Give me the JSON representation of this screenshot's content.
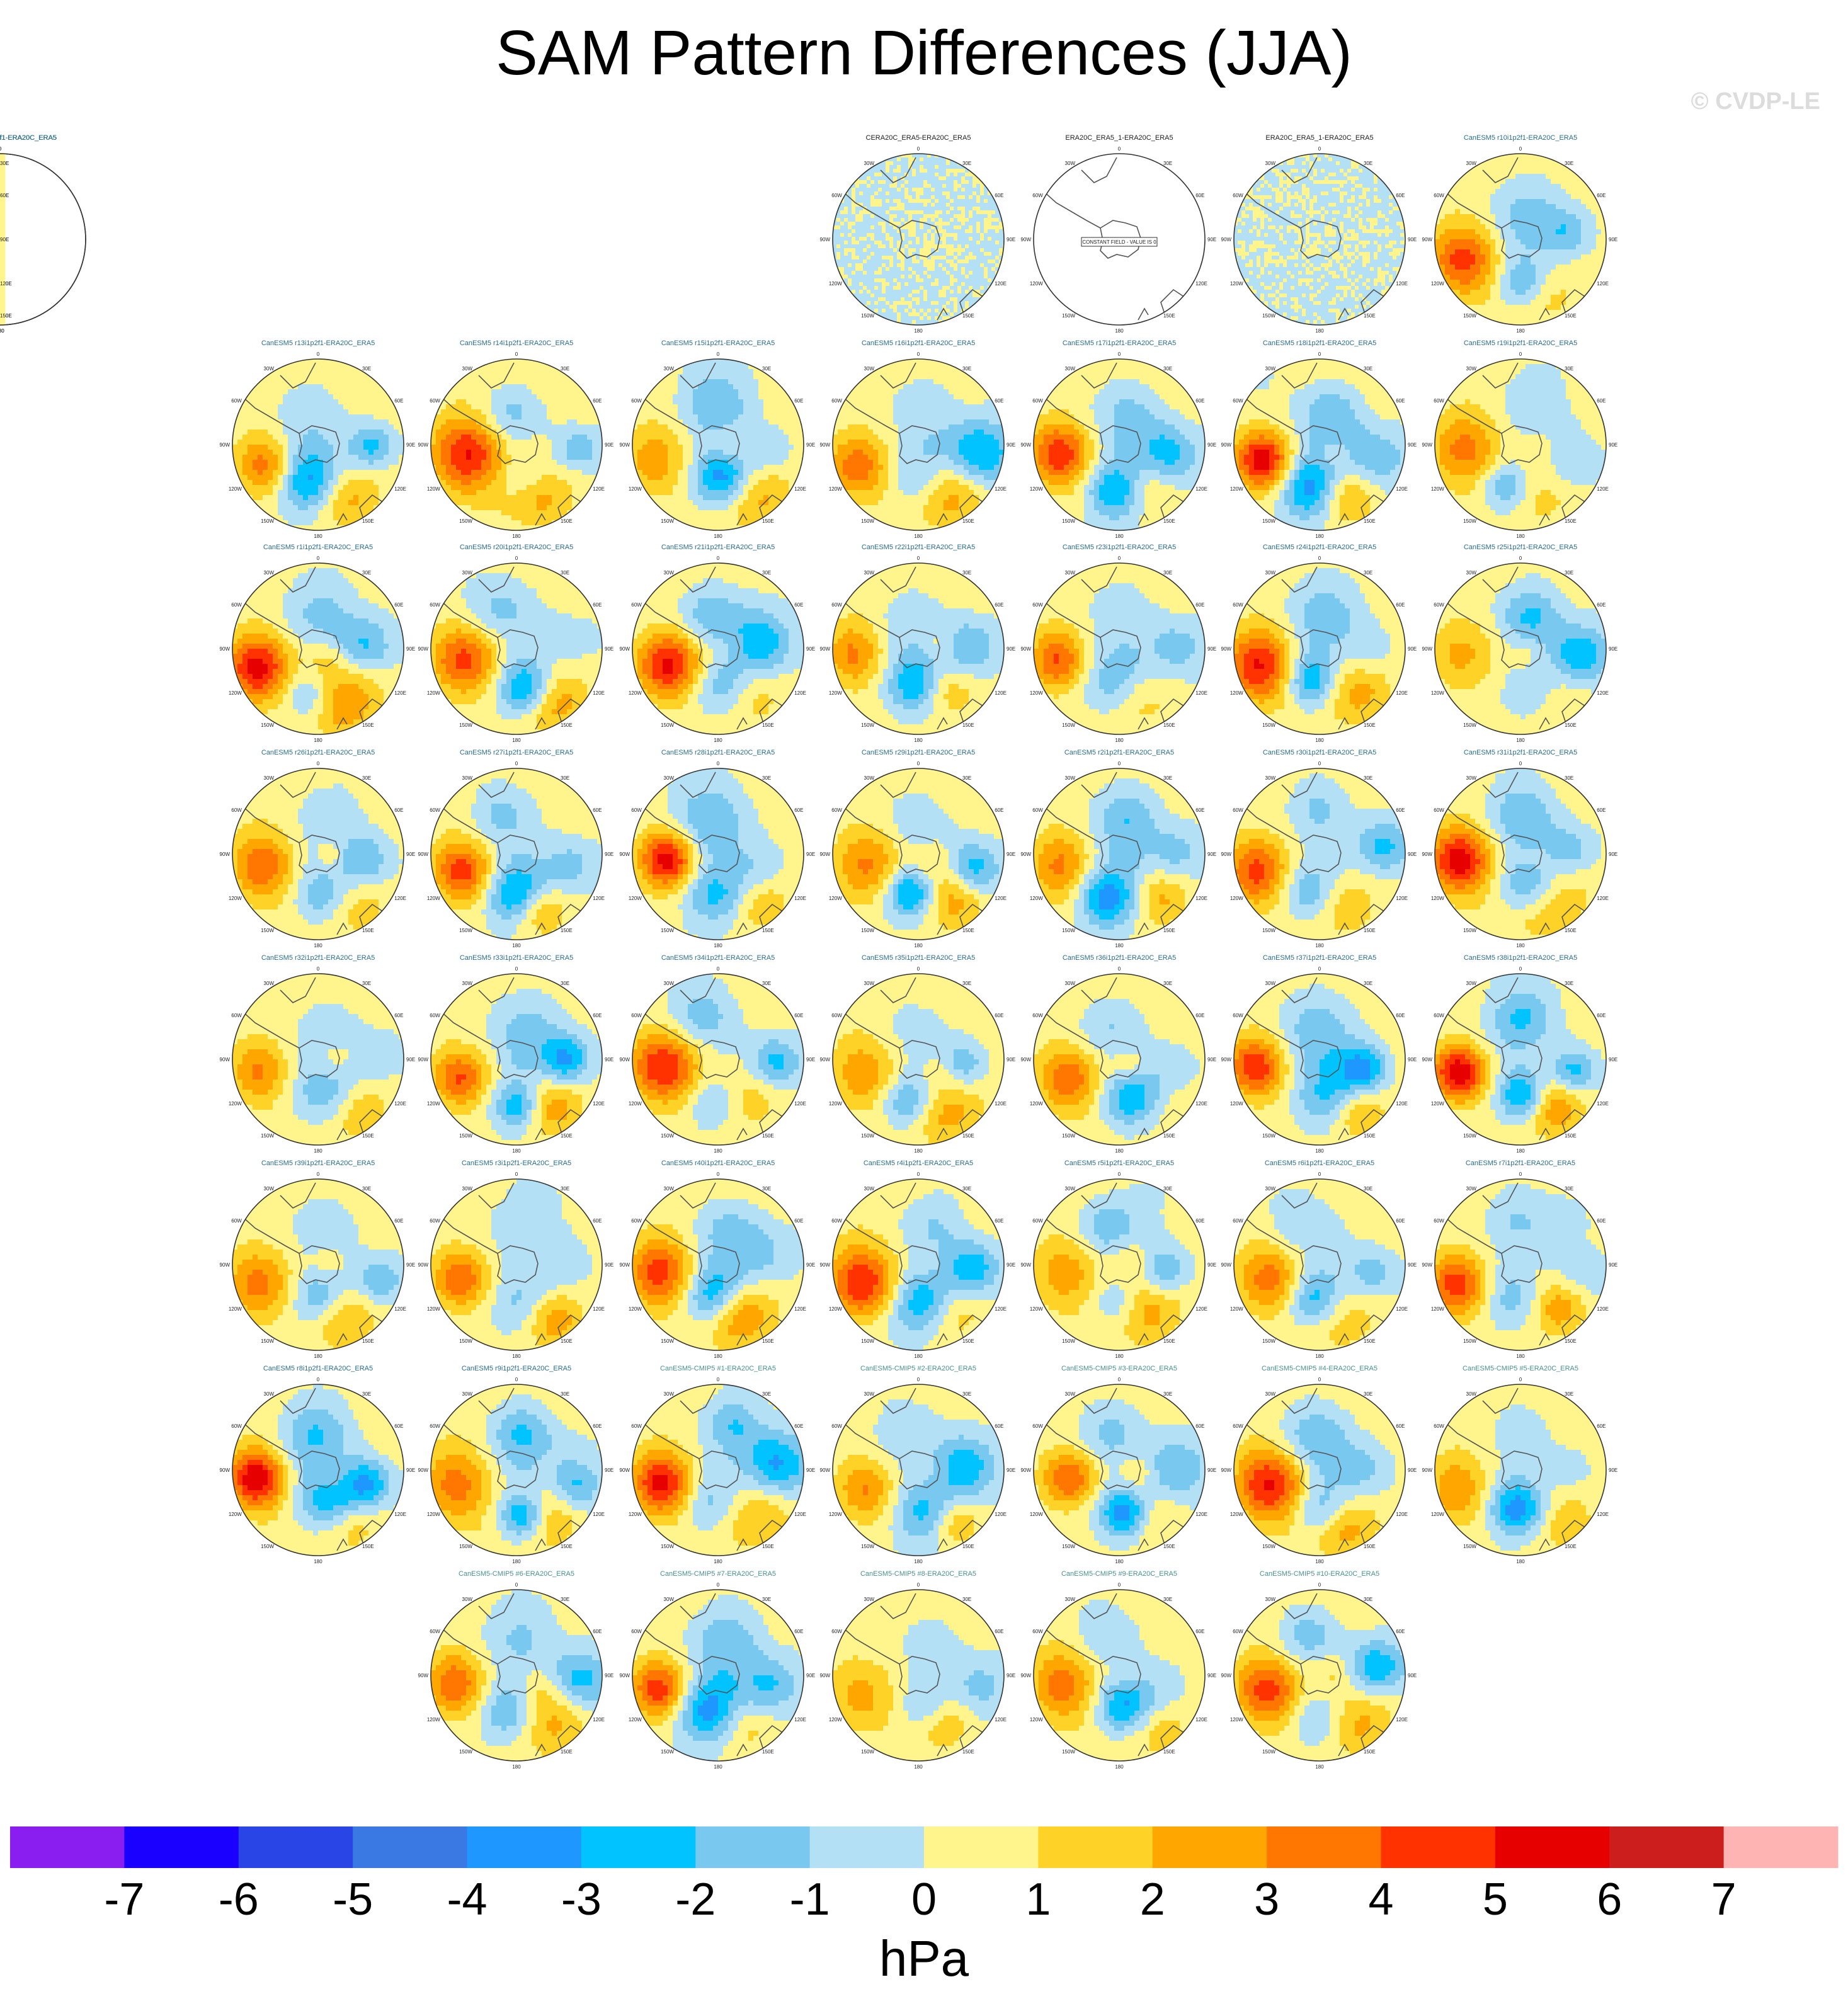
{
  "title": "SAM Pattern Differences (JJA)",
  "watermark": "© CVDP-LE",
  "colorbar": {
    "unit": "hPa",
    "ticks": [
      "-7",
      "-6",
      "-5",
      "-4",
      "-3",
      "-2",
      "-1",
      "0",
      "1",
      "2",
      "3",
      "4",
      "5",
      "6",
      "7"
    ],
    "colors": [
      "#8a1ef0",
      "#1a00ff",
      "#2a45e6",
      "#3a78e3",
      "#1e98ff",
      "#00c3ff",
      "#78c8f0",
      "#b4e0f5",
      "#fff58c",
      "#ffd228",
      "#ffa600",
      "#ff7600",
      "#ff3200",
      "#e60000",
      "#cd1e1e",
      "#ffb4b4"
    ]
  },
  "map_labels": {
    "top": "0",
    "bottom": "180",
    "left": [
      "30W",
      "60W",
      "90W",
      "120W",
      "150W"
    ],
    "right": [
      "30E",
      "60E",
      "90E",
      "120E",
      "150E"
    ],
    "constant_field": "CONSTANT FIELD - VALUE IS 0"
  },
  "chart_data": {
    "type": "heatmap",
    "title": "SAM Pattern Differences (JJA)",
    "units": "hPa",
    "levels": [
      -7,
      -6,
      -5,
      -4,
      -3,
      -2,
      -1,
      0,
      1,
      2,
      3,
      4,
      5,
      6,
      7
    ],
    "panels": [
      {
        "label": "CERA20C_ERA5-ERA20C_ERA5",
        "kind": "obs",
        "pattern": "noisy"
      },
      {
        "label": "ERA20C_ERA5_1-ERA20C_ERA5",
        "kind": "obs",
        "pattern": "constant"
      },
      {
        "label": "ERA20C_ERA5_1-ERA20C_ERA5",
        "kind": "obs",
        "pattern": "noisy"
      },
      {
        "label": "CanESM5 r10i1p2f1-ERA20C_ERA5",
        "kind": "model",
        "seed": 10
      },
      {
        "label": "CanESM5 r11i1p2f1-ERA20C_ERA5",
        "kind": "model",
        "seed": 11
      },
      {
        "label": "CanESM5 r12i1p2f1-ERA20C_ERA5",
        "kind": "model",
        "seed": 12
      },
      {
        "label": "CanESM5 r13i1p2f1-ERA20C_ERA5",
        "kind": "model",
        "seed": 13
      },
      {
        "label": "CanESM5 r14i1p2f1-ERA20C_ERA5",
        "kind": "model",
        "seed": 14
      },
      {
        "label": "CanESM5 r15i1p2f1-ERA20C_ERA5",
        "kind": "model",
        "seed": 15
      },
      {
        "label": "CanESM5 r16i1p2f1-ERA20C_ERA5",
        "kind": "model",
        "seed": 16
      },
      {
        "label": "CanESM5 r17i1p2f1-ERA20C_ERA5",
        "kind": "model",
        "seed": 17
      },
      {
        "label": "CanESM5 r18i1p2f1-ERA20C_ERA5",
        "kind": "model",
        "seed": 18
      },
      {
        "label": "CanESM5 r19i1p2f1-ERA20C_ERA5",
        "kind": "model",
        "seed": 19
      },
      {
        "label": "CanESM5 r1i1p2f1-ERA20C_ERA5",
        "kind": "model",
        "seed": 1
      },
      {
        "label": "CanESM5 r20i1p2f1-ERA20C_ERA5",
        "kind": "model",
        "seed": 20
      },
      {
        "label": "CanESM5 r21i1p2f1-ERA20C_ERA5",
        "kind": "model",
        "seed": 21
      },
      {
        "label": "CanESM5 r22i1p2f1-ERA20C_ERA5",
        "kind": "model",
        "seed": 22
      },
      {
        "label": "CanESM5 r23i1p2f1-ERA20C_ERA5",
        "kind": "model",
        "seed": 23
      },
      {
        "label": "CanESM5 r24i1p2f1-ERA20C_ERA5",
        "kind": "model",
        "seed": 24
      },
      {
        "label": "CanESM5 r25i1p2f1-ERA20C_ERA5",
        "kind": "model",
        "seed": 25
      },
      {
        "label": "CanESM5 r26i1p2f1-ERA20C_ERA5",
        "kind": "model",
        "seed": 26
      },
      {
        "label": "CanESM5 r27i1p2f1-ERA20C_ERA5",
        "kind": "model",
        "seed": 27
      },
      {
        "label": "CanESM5 r28i1p2f1-ERA20C_ERA5",
        "kind": "model",
        "seed": 28
      },
      {
        "label": "CanESM5 r29i1p2f1-ERA20C_ERA5",
        "kind": "model",
        "seed": 29
      },
      {
        "label": "CanESM5 r2i1p2f1-ERA20C_ERA5",
        "kind": "model",
        "seed": 2
      },
      {
        "label": "CanESM5 r30i1p2f1-ERA20C_ERA5",
        "kind": "model",
        "seed": 30
      },
      {
        "label": "CanESM5 r31i1p2f1-ERA20C_ERA5",
        "kind": "model",
        "seed": 31
      },
      {
        "label": "CanESM5 r32i1p2f1-ERA20C_ERA5",
        "kind": "model",
        "seed": 32
      },
      {
        "label": "CanESM5 r33i1p2f1-ERA20C_ERA5",
        "kind": "model",
        "seed": 33
      },
      {
        "label": "CanESM5 r34i1p2f1-ERA20C_ERA5",
        "kind": "model",
        "seed": 34
      },
      {
        "label": "CanESM5 r35i1p2f1-ERA20C_ERA5",
        "kind": "model",
        "seed": 35
      },
      {
        "label": "CanESM5 r36i1p2f1-ERA20C_ERA5",
        "kind": "model",
        "seed": 36
      },
      {
        "label": "CanESM5 r37i1p2f1-ERA20C_ERA5",
        "kind": "model",
        "seed": 37
      },
      {
        "label": "CanESM5 r38i1p2f1-ERA20C_ERA5",
        "kind": "model",
        "seed": 38
      },
      {
        "label": "CanESM5 r39i1p2f1-ERA20C_ERA5",
        "kind": "model",
        "seed": 39
      },
      {
        "label": "CanESM5 r3i1p2f1-ERA20C_ERA5",
        "kind": "model",
        "seed": 3
      },
      {
        "label": "CanESM5 r40i1p2f1-ERA20C_ERA5",
        "kind": "model",
        "seed": 40
      },
      {
        "label": "CanESM5 r4i1p2f1-ERA20C_ERA5",
        "kind": "model",
        "seed": 4
      },
      {
        "label": "CanESM5 r5i1p2f1-ERA20C_ERA5",
        "kind": "model",
        "seed": 5
      },
      {
        "label": "CanESM5 r6i1p2f1-ERA20C_ERA5",
        "kind": "model",
        "seed": 6
      },
      {
        "label": "CanESM5 r7i1p2f1-ERA20C_ERA5",
        "kind": "model",
        "seed": 7
      },
      {
        "label": "CanESM5 r8i1p2f1-ERA20C_ERA5",
        "kind": "model",
        "seed": 8
      },
      {
        "label": "CanESM5 r9i1p2f1-ERA20C_ERA5",
        "kind": "model",
        "seed": 9
      },
      {
        "label": "CanESM5-CMIP5 #1-ERA20C_ERA5",
        "kind": "mmm",
        "seed": 41
      },
      {
        "label": "CanESM5-CMIP5 #2-ERA20C_ERA5",
        "kind": "mmm",
        "seed": 42
      },
      {
        "label": "CanESM5-CMIP5 #3-ERA20C_ERA5",
        "kind": "mmm",
        "seed": 43
      },
      {
        "label": "CanESM5-CMIP5 #4-ERA20C_ERA5",
        "kind": "mmm",
        "seed": 44
      },
      {
        "label": "CanESM5-CMIP5 #5-ERA20C_ERA5",
        "kind": "mmm",
        "seed": 45
      },
      {
        "label": "CanESM5-CMIP5 #6-ERA20C_ERA5",
        "kind": "mmm",
        "seed": 46
      },
      {
        "label": "CanESM5-CMIP5 #7-ERA20C_ERA5",
        "kind": "mmm",
        "seed": 47
      },
      {
        "label": "CanESM5-CMIP5 #8-ERA20C_ERA5",
        "kind": "mmm",
        "seed": 48
      },
      {
        "label": "CanESM5-CMIP5 #9-ERA20C_ERA5",
        "kind": "mmm",
        "seed": 49
      },
      {
        "label": "CanESM5-CMIP5 #10-ERA20C_ERA5",
        "kind": "mmm",
        "seed": 50
      }
    ]
  }
}
